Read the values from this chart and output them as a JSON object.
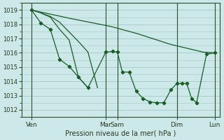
{
  "bg_color": "#cce8e8",
  "grid_color": "#a8c8c8",
  "line_color": "#1a5c28",
  "xlim": [
    0,
    6.0
  ],
  "ylim": [
    1011.5,
    1019.5
  ],
  "yticks": [
    1012,
    1013,
    1014,
    1015,
    1016,
    1017,
    1018,
    1019
  ],
  "xtick_positions": [
    0.3,
    2.55,
    2.9,
    4.7,
    5.85
  ],
  "xtick_labels": [
    "Ven",
    "Mar",
    "Sam",
    "Dim",
    "Lun"
  ],
  "xlabel": "Pression niveau de la mer( hPa )",
  "vline_positions": [
    0.3,
    2.55,
    2.9,
    4.7,
    5.85
  ],
  "series": [
    {
      "x": [
        0.3,
        0.58,
        0.87,
        1.15,
        1.44,
        1.72,
        2.01,
        2.55,
        2.76,
        2.9,
        3.05,
        3.26,
        3.47,
        3.68,
        3.89,
        4.1,
        4.31,
        4.52,
        4.7,
        4.85,
        5.0,
        5.15,
        5.3,
        5.6,
        5.85
      ],
      "y": [
        1019.0,
        1018.1,
        1017.65,
        1015.55,
        1015.05,
        1014.3,
        1013.55,
        1016.05,
        1016.1,
        1016.05,
        1014.65,
        1014.65,
        1013.3,
        1012.8,
        1012.55,
        1012.5,
        1012.5,
        1013.4,
        1013.85,
        1013.85,
        1013.85,
        1012.8,
        1012.5,
        1015.9,
        1016.0
      ],
      "has_markers": true
    },
    {
      "x": [
        0.3,
        1.5,
        2.7,
        3.5,
        4.5,
        5.5,
        5.85
      ],
      "y": [
        1019.0,
        1018.4,
        1017.85,
        1017.35,
        1016.6,
        1016.05,
        1016.0
      ],
      "has_markers": false
    },
    {
      "x": [
        0.3,
        0.58,
        0.87,
        1.15,
        1.72,
        2.01,
        2.3
      ],
      "y": [
        1019.0,
        1018.8,
        1018.55,
        1018.15,
        1016.8,
        1016.05,
        1013.55
      ],
      "has_markers": false
    },
    {
      "x": [
        0.58,
        0.87,
        1.15,
        1.44,
        1.72,
        2.01
      ],
      "y": [
        1018.8,
        1018.5,
        1017.65,
        1016.9,
        1014.3,
        1013.55
      ],
      "has_markers": false
    }
  ]
}
